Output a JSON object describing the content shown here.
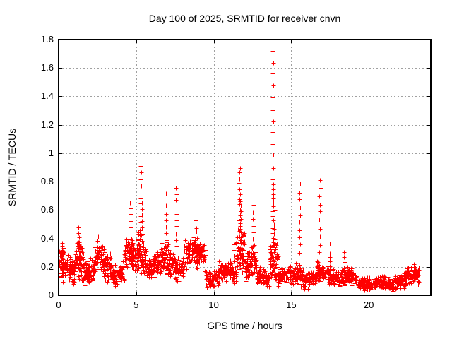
{
  "title": "Day 100 of 2025, SRMTID for receiver cnvn",
  "colors": {
    "marker": "#ff0000",
    "grid": "#a0a0a0",
    "border": "#000000",
    "background": "#ffffff",
    "text": "#000000"
  },
  "chart_data": {
    "type": "scatter",
    "title": "Day 100 of 2025, SRMTID for receiver cnvn",
    "xlabel": "GPS time / hours",
    "ylabel": "SRMTID / TECUs",
    "xlim": [
      0,
      24
    ],
    "ylim": [
      0,
      1.8
    ],
    "xticks": [
      {
        "v": 0,
        "label": "0"
      },
      {
        "v": 5,
        "label": "5"
      },
      {
        "v": 10,
        "label": "10"
      },
      {
        "v": 15,
        "label": "15"
      },
      {
        "v": 20,
        "label": "20"
      }
    ],
    "yticks": [
      {
        "v": 0,
        "label": "0"
      },
      {
        "v": 0.2,
        "label": "0.2"
      },
      {
        "v": 0.4,
        "label": "0.4"
      },
      {
        "v": 0.6,
        "label": "0.6"
      },
      {
        "v": 0.8,
        "label": "0.8"
      },
      {
        "v": 1,
        "label": "1"
      },
      {
        "v": 1.2,
        "label": "1.2"
      },
      {
        "v": 1.4,
        "label": "1.4"
      },
      {
        "v": 1.6,
        "label": "1.6"
      },
      {
        "v": 1.8,
        "label": "1.8"
      }
    ],
    "grid": true,
    "legend": "none",
    "marker": "plus",
    "marker_color": "#ff0000",
    "seed": 7,
    "notable_peaks": [
      {
        "x": 5.3,
        "y": 0.91
      },
      {
        "x": 7.6,
        "y": 0.76
      },
      {
        "x": 11.7,
        "y": 0.9
      },
      {
        "x": 13.85,
        "y": 1.8
      },
      {
        "x": 15.55,
        "y": 0.78
      },
      {
        "x": 16.85,
        "y": 0.81
      }
    ],
    "base_segments": [
      [
        0.03,
        0.35,
        40,
        0.21,
        0.12
      ],
      [
        0.35,
        1.05,
        75,
        0.17,
        0.1
      ],
      [
        1.05,
        1.6,
        70,
        0.26,
        0.15
      ],
      [
        1.6,
        2.3,
        75,
        0.17,
        0.09
      ],
      [
        2.3,
        3.4,
        110,
        0.22,
        0.13
      ],
      [
        3.4,
        4.25,
        80,
        0.16,
        0.09
      ],
      [
        4.25,
        5.05,
        95,
        0.27,
        0.14
      ],
      [
        5.05,
        5.65,
        80,
        0.32,
        0.16
      ],
      [
        5.65,
        6.6,
        90,
        0.2,
        0.1
      ],
      [
        6.6,
        7.15,
        60,
        0.26,
        0.13
      ],
      [
        7.15,
        8.1,
        85,
        0.22,
        0.11
      ],
      [
        8.1,
        9.5,
        130,
        0.29,
        0.12
      ],
      [
        9.5,
        10.35,
        70,
        0.12,
        0.07
      ],
      [
        10.35,
        11.45,
        95,
        0.16,
        0.09
      ],
      [
        11.45,
        12.0,
        70,
        0.34,
        0.19
      ],
      [
        12.0,
        12.75,
        75,
        0.21,
        0.12
      ],
      [
        12.75,
        13.6,
        85,
        0.13,
        0.07
      ],
      [
        13.6,
        14.15,
        65,
        0.28,
        0.18
      ],
      [
        14.15,
        15.25,
        100,
        0.13,
        0.07
      ],
      [
        15.25,
        15.75,
        55,
        0.17,
        0.1
      ],
      [
        15.75,
        16.65,
        85,
        0.11,
        0.06
      ],
      [
        16.65,
        17.1,
        50,
        0.15,
        0.09
      ],
      [
        17.1,
        18.1,
        90,
        0.14,
        0.08
      ],
      [
        18.1,
        19.3,
        105,
        0.12,
        0.07
      ],
      [
        19.3,
        20.6,
        110,
        0.09,
        0.05
      ],
      [
        20.6,
        21.6,
        90,
        0.08,
        0.05
      ],
      [
        21.6,
        22.4,
        75,
        0.11,
        0.06
      ],
      [
        22.4,
        23.25,
        80,
        0.13,
        0.07
      ]
    ],
    "spike_columns": [
      [
        0.28,
        0.1,
        0.37,
        8
      ],
      [
        1.3,
        0.3,
        0.48,
        6
      ],
      [
        2.5,
        0.26,
        0.42,
        5
      ],
      [
        4.62,
        0.35,
        0.65,
        8
      ],
      [
        5.3,
        0.42,
        0.91,
        12
      ],
      [
        5.38,
        0.38,
        0.7,
        8
      ],
      [
        6.92,
        0.34,
        0.72,
        9
      ],
      [
        7.58,
        0.34,
        0.76,
        10
      ],
      [
        8.85,
        0.32,
        0.52,
        6
      ],
      [
        11.3,
        0.24,
        0.43,
        6
      ],
      [
        11.66,
        0.45,
        0.9,
        13
      ],
      [
        11.72,
        0.38,
        0.66,
        10
      ],
      [
        12.55,
        0.3,
        0.63,
        8
      ],
      [
        13.82,
        0.82,
        1.8,
        13
      ],
      [
        13.83,
        0.34,
        0.78,
        15
      ],
      [
        13.92,
        0.3,
        0.6,
        10
      ],
      [
        15.55,
        0.3,
        0.78,
        10
      ],
      [
        16.85,
        0.3,
        0.81,
        10
      ],
      [
        17.5,
        0.2,
        0.36,
        6
      ],
      [
        18.4,
        0.16,
        0.3,
        5
      ],
      [
        22.9,
        0.1,
        0.22,
        6
      ]
    ]
  }
}
